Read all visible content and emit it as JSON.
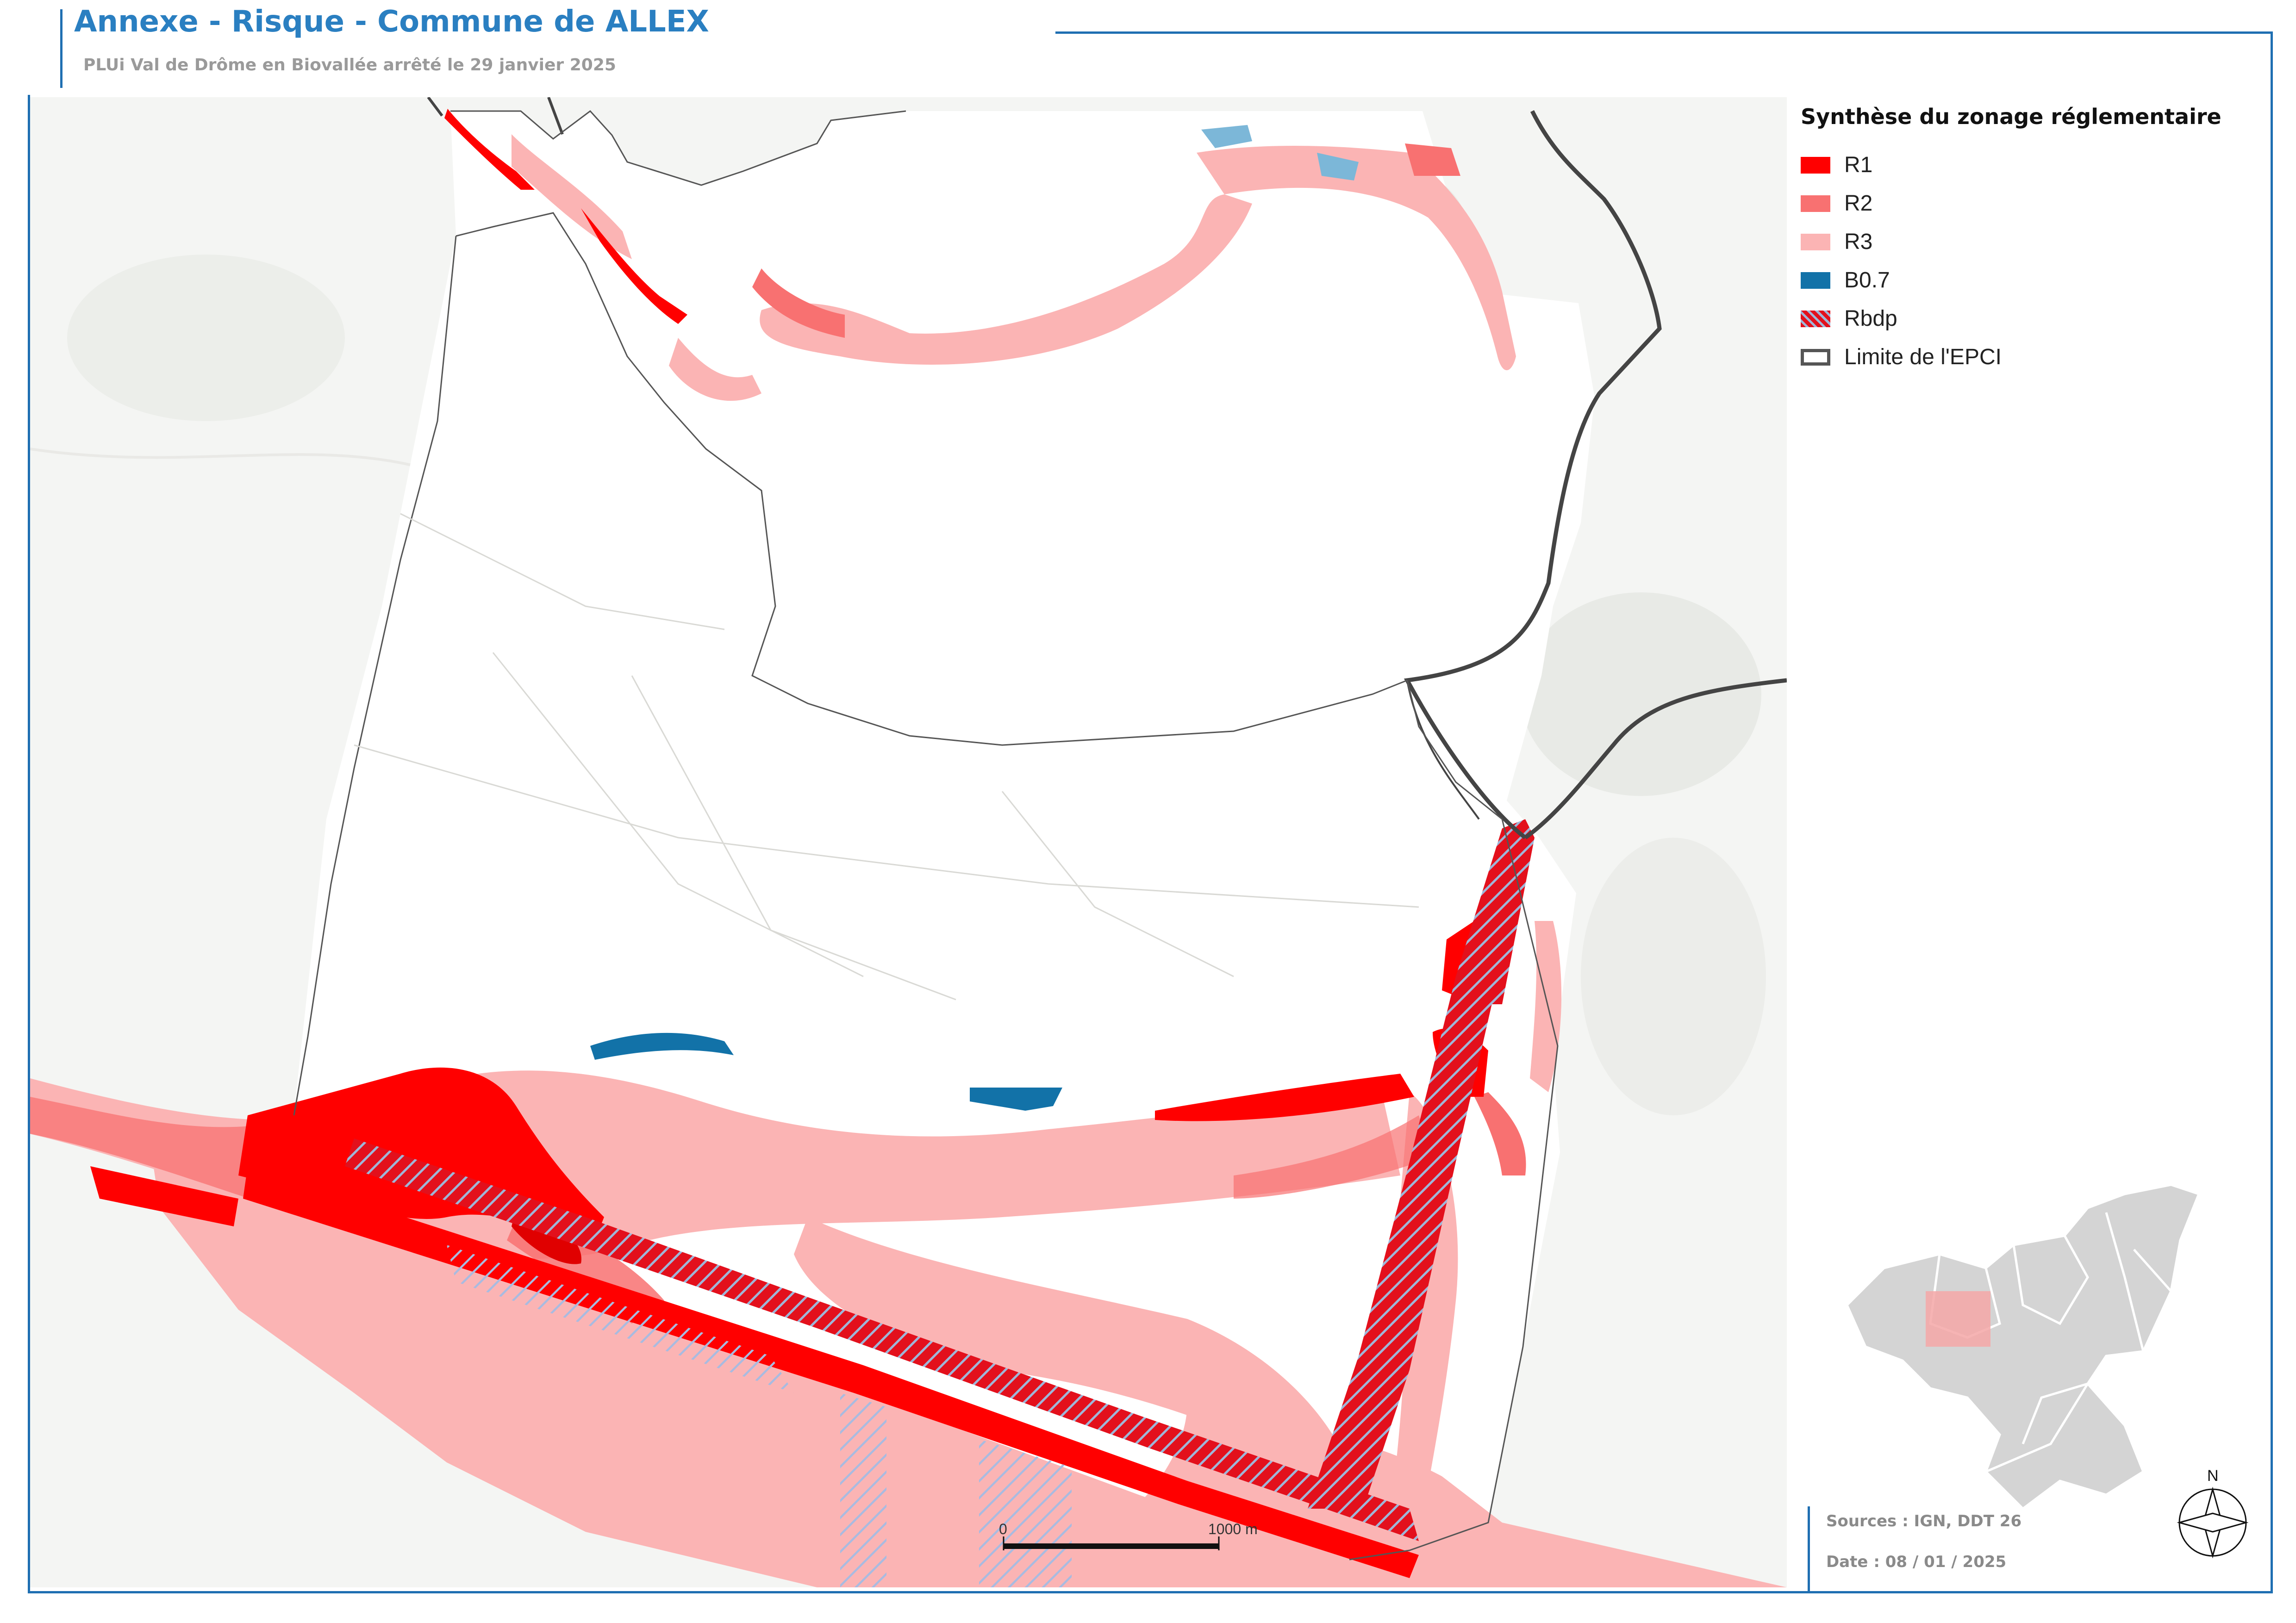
{
  "header": {
    "title": "Annexe - Risque - Commune de ALLEX",
    "subtitle": "PLUi Val de Drôme en Biovallée arrêté le 29 janvier 2025"
  },
  "legend": {
    "title": "Synthèse du zonage réglementaire",
    "items": [
      {
        "label": "R1",
        "color": "#ff0000",
        "style": "fill"
      },
      {
        "label": "R2",
        "color": "#f87171",
        "style": "fill"
      },
      {
        "label": "R3",
        "color": "#fbb4b4",
        "style": "fill"
      },
      {
        "label": "B0.7",
        "color": "#1272a8",
        "style": "fill"
      },
      {
        "label": "Rbdp",
        "color": "#e3101c",
        "style": "hatched"
      },
      {
        "label": "Limite de l'EPCI",
        "color": "#555555",
        "style": "outline"
      }
    ]
  },
  "scale_bar": {
    "start_label": "0",
    "end_label": "1000 m"
  },
  "north_arrow": {
    "label": "N"
  },
  "footer": {
    "sources": "Sources : IGN, DDT 26",
    "date": "Date : 08 / 01 / 2025"
  },
  "colors": {
    "frame": "#1f6fb2",
    "title": "#2a7fc1",
    "r1": "#ff0000",
    "r2": "#f87171",
    "r3": "#fbb4b4",
    "b07": "#1272a8",
    "rbdp_hatch": "#9fb6d8",
    "commune_fill": "#ffffff",
    "inset_region": "#d4d4d4",
    "inset_highlight": "#f4a7a7"
  }
}
